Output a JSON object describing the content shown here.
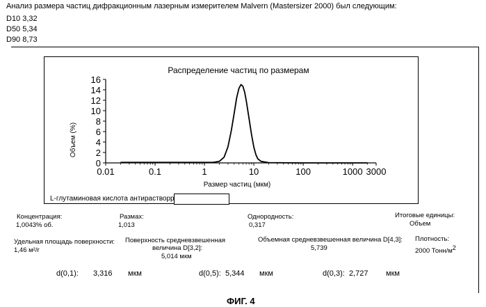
{
  "header": {
    "intro": "Анализ размера частиц дифракционным лазерным измерителем Malvern (Mastersizer 2000) был следующим:",
    "lines": [
      "D10 3,32",
      "D50 5,34",
      "D90 8,73"
    ]
  },
  "chart_data": {
    "type": "line",
    "title": "Распределение частиц по размерам",
    "xlabel": "Размер частиц (мкм)",
    "ylabel": "Объем (%)",
    "xscale": "log",
    "xlim": [
      0.01,
      3000
    ],
    "ylim": [
      0,
      16
    ],
    "xticks": [
      0.01,
      0.1,
      1,
      10,
      100,
      1000,
      3000
    ],
    "xtick_labels": [
      "0.01",
      "0.1",
      "1",
      "10",
      "100",
      "1000",
      "3000"
    ],
    "yticks": [
      0,
      2,
      4,
      6,
      8,
      10,
      12,
      14,
      16
    ],
    "ytick_labels": [
      "0",
      "2",
      "4",
      "6",
      "8",
      "10",
      "12",
      "14",
      "16"
    ],
    "grid": false,
    "series": [
      {
        "x": [
          0.02,
          0.5,
          1.5,
          2.0,
          2.5,
          3.0,
          3.5,
          4.0,
          4.5,
          5.0,
          5.5,
          6.0,
          6.5,
          7.0,
          8.0,
          9.0,
          10.0,
          11.0,
          12.0,
          14.0,
          20.0,
          100.0,
          1000.0,
          2000.0
        ],
        "y": [
          0.1,
          0.1,
          0.1,
          0.3,
          1.1,
          3.1,
          6.2,
          9.5,
          12.5,
          14.3,
          15.0,
          14.7,
          13.6,
          12.0,
          8.5,
          5.4,
          3.0,
          1.6,
          0.8,
          0.3,
          0.05,
          0.0,
          0.0,
          0.0
        ]
      }
    ]
  },
  "sample": {
    "name": "L-глутаминовая кислота антирастворpt",
    "input_value": ""
  },
  "results": {
    "concentration_label": "Концентрация:",
    "concentration_value": "1,0043% об.",
    "span_label": "Размах:",
    "span_value": "1,013",
    "uniformity_label": "Однородность:",
    "uniformity_value": "0,317",
    "units_label": "Итоговые единицы:",
    "units_value": "Объем",
    "ssa_label": "Удельная площадь поверхности:",
    "ssa_value": "1,46 м²/г",
    "surface_mean_label_1": "Поверхность средневзвешенная",
    "surface_mean_label_2": "величина D[3,2]:",
    "surface_mean_value": "5,014 мкм",
    "volume_mean_label": "Объемная средневзвешенная величина D[4,3]:",
    "volume_mean_value": "5,739",
    "density_label": "Плотность:",
    "density_value": "2000 Тонн/м",
    "density_sup": "2"
  },
  "percentiles": {
    "d01_label": "d(0,1):",
    "d01_value": "3,316",
    "d01_unit": "мкм",
    "d05_label": "d(0,5):",
    "d05_value": "5,344",
    "d05_unit": "мкм",
    "d03_label": "d(0,3):",
    "d03_value": "2,727",
    "d03_unit": "мкм"
  },
  "figure_caption": "ФИГ. 4"
}
